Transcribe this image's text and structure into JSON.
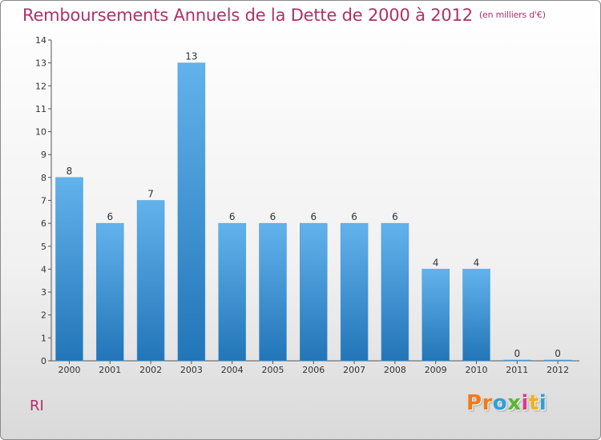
{
  "header": {
    "title": "Remboursements Annuels de la Dette de 2000 à 2012",
    "unit": "(en milliers d'€)"
  },
  "footer": {
    "location": "RI",
    "logo_text": "Proxiti",
    "logo_colors": [
      "#f07a1a",
      "#f07a1a",
      "#2e9fd8",
      "#5bb531",
      "#d93a8a",
      "#f2b21a",
      "#2e9fd8"
    ]
  },
  "colors": {
    "title": "#b0306a",
    "bar_top": "#62b2ec",
    "bar_bottom": "#2275b7"
  },
  "chart_data": {
    "type": "bar",
    "categories": [
      "2000",
      "2001",
      "2002",
      "2003",
      "2004",
      "2005",
      "2006",
      "2007",
      "2008",
      "2009",
      "2010",
      "2011",
      "2012"
    ],
    "values": [
      8,
      6,
      7,
      13,
      6,
      6,
      6,
      6,
      6,
      4,
      4,
      0,
      0
    ],
    "data_labels": [
      "8",
      "6",
      "7",
      "13",
      "6",
      "6",
      "6",
      "6",
      "6",
      "4",
      "4",
      "0",
      "0"
    ],
    "ylim": [
      0,
      14
    ],
    "yticks": [
      0,
      1,
      2,
      3,
      4,
      5,
      6,
      7,
      8,
      9,
      10,
      11,
      12,
      13,
      14
    ],
    "ytick_labels": [
      "0",
      "1",
      "2",
      "3",
      "4",
      "5",
      "6",
      "7",
      "8",
      "9",
      "10",
      "11",
      "12",
      "13",
      "14"
    ],
    "grid": false,
    "legend": "none"
  }
}
